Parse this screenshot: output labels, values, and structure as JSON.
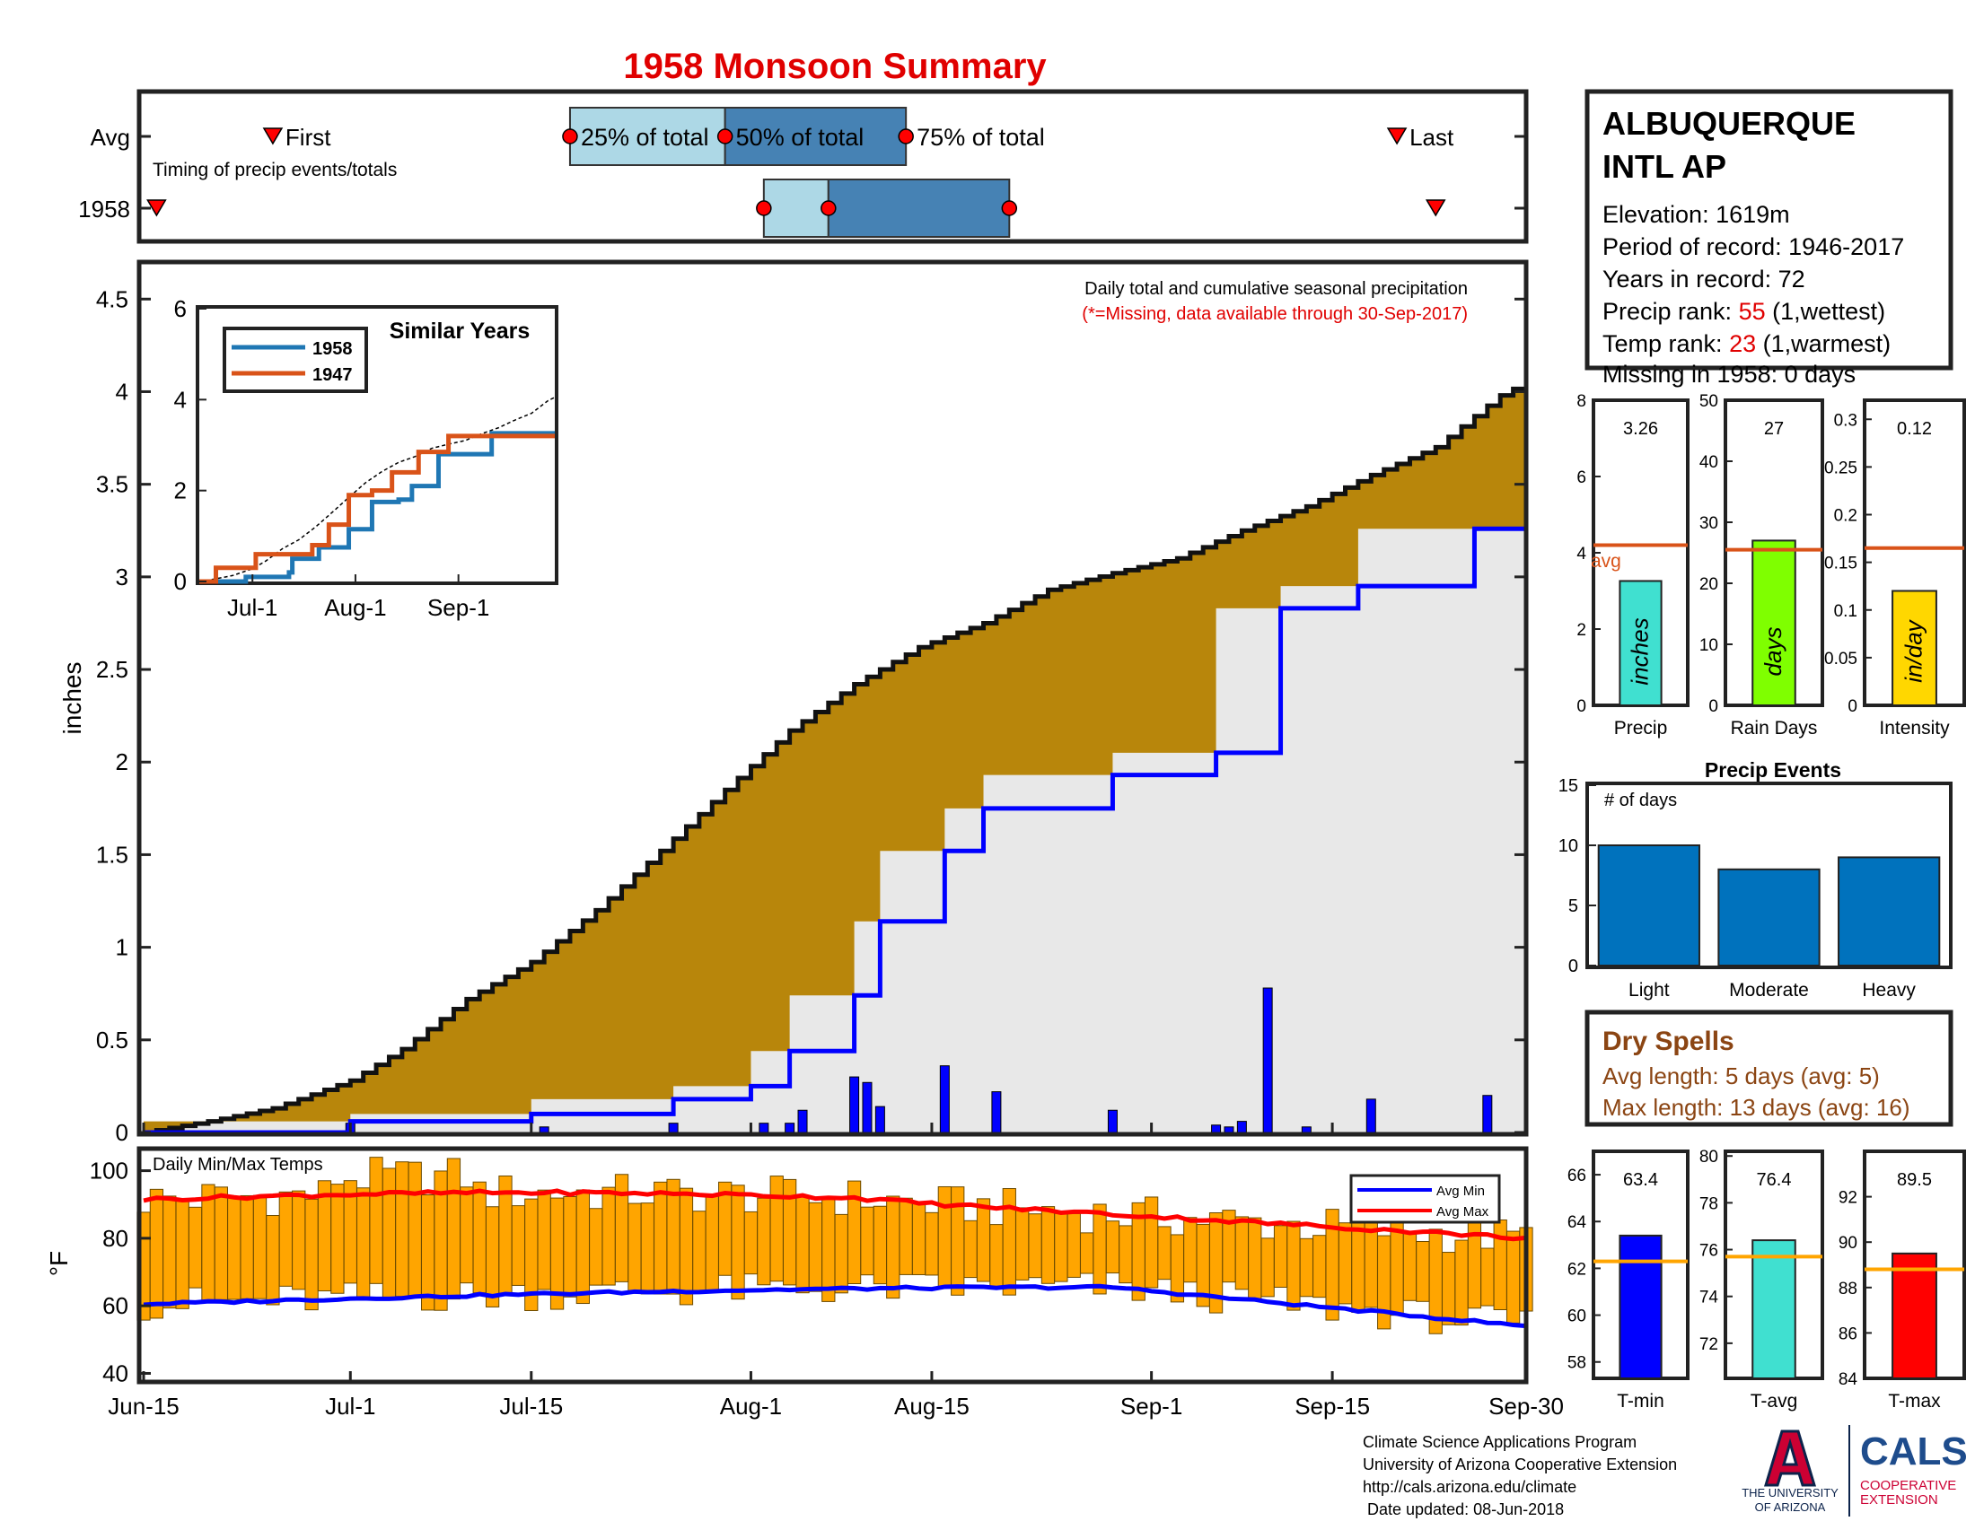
{
  "title": "1958 Monsoon Summary",
  "station": {
    "name_line1": "ALBUQUERQUE",
    "name_line2": "INTL AP",
    "elevation": "Elevation: 1619m",
    "period": "Period of record: 1946-2017",
    "years": "Years in record: 72",
    "precip_rank_label": "Precip rank: ",
    "precip_rank_value": "55",
    "precip_rank_note": " (1,wettest)",
    "temp_rank_label": "Temp rank: ",
    "temp_rank_value": "23",
    "temp_rank_note": " (1,warmest)",
    "missing": "Missing in 1958: 0 days"
  },
  "timing": {
    "caption": "Timing of precip events/totals",
    "row_avg": "Avg",
    "row_year": "1958",
    "first_label": "First",
    "last_label": "Last",
    "p25_label": "25% of total",
    "p50_label": "50% of total",
    "p75_label": "75% of total",
    "avg": {
      "first": 10,
      "p25": 33,
      "p50": 45,
      "p75": 59,
      "last": 97
    },
    "year": {
      "first": 1,
      "p25": 48,
      "p50": 53,
      "p75": 67,
      "last": 100
    }
  },
  "precip": {
    "caption": "Daily total and cumulative seasonal precipitation",
    "missing_note": "(*=Missing, data available through 30-Sep-2017)",
    "ylabel": "inches",
    "ylim": [
      0,
      4.7
    ],
    "yticks": [
      "0",
      "0.5",
      "1",
      "1.5",
      "2",
      "2.5",
      "3",
      "3.5",
      "4",
      "4.5"
    ],
    "xticks": [
      "Jun-15",
      "Jul-1",
      "Jul-15",
      "Aug-1",
      "Aug-15",
      "Sep-1",
      "Sep-15",
      "Sep-30"
    ],
    "xtick_days": [
      0,
      16,
      30,
      47,
      61,
      78,
      92,
      107
    ],
    "avg_cumulative": [
      [
        0,
        0
      ],
      [
        5,
        0.06
      ],
      [
        10,
        0.13
      ],
      [
        16,
        0.28
      ],
      [
        20,
        0.45
      ],
      [
        25,
        0.72
      ],
      [
        30,
        0.92
      ],
      [
        35,
        1.2
      ],
      [
        40,
        1.52
      ],
      [
        45,
        1.85
      ],
      [
        50,
        2.17
      ],
      [
        55,
        2.42
      ],
      [
        60,
        2.62
      ],
      [
        65,
        2.75
      ],
      [
        70,
        2.93
      ],
      [
        75,
        3.02
      ],
      [
        80,
        3.1
      ],
      [
        85,
        3.25
      ],
      [
        90,
        3.38
      ],
      [
        95,
        3.55
      ],
      [
        100,
        3.7
      ],
      [
        105,
        3.98
      ],
      [
        107,
        4.05
      ]
    ],
    "cumulative_1958": [
      [
        0,
        0
      ],
      [
        16,
        0.06
      ],
      [
        30,
        0.1
      ],
      [
        41,
        0.18
      ],
      [
        47,
        0.25
      ],
      [
        50,
        0.44
      ],
      [
        55,
        0.74
      ],
      [
        57,
        1.14
      ],
      [
        62,
        1.52
      ],
      [
        65,
        1.75
      ],
      [
        75,
        1.93
      ],
      [
        83,
        2.05
      ],
      [
        88,
        2.83
      ],
      [
        94,
        2.95
      ],
      [
        103,
        3.26
      ],
      [
        107,
        3.26
      ]
    ],
    "daily_bars": [
      [
        16,
        0.05
      ],
      [
        31,
        0.03
      ],
      [
        41,
        0.05
      ],
      [
        48,
        0.05
      ],
      [
        50,
        0.05
      ],
      [
        51,
        0.12
      ],
      [
        55,
        0.3
      ],
      [
        56,
        0.27
      ],
      [
        57,
        0.14
      ],
      [
        62,
        0.36
      ],
      [
        66,
        0.22
      ],
      [
        75,
        0.12
      ],
      [
        83,
        0.04
      ],
      [
        84,
        0.03
      ],
      [
        85,
        0.06
      ],
      [
        87,
        0.78
      ],
      [
        90,
        0.03
      ],
      [
        95,
        0.18
      ],
      [
        104,
        0.2
      ]
    ]
  },
  "inset": {
    "title": "Similar Years",
    "series": [
      {
        "name": "1958",
        "color": "#1f77b4",
        "points": [
          [
            0,
            0
          ],
          [
            10,
            0
          ],
          [
            14,
            0.1
          ],
          [
            16,
            0.1
          ],
          [
            27,
            0.2
          ],
          [
            28,
            0.5
          ],
          [
            36,
            0.75
          ],
          [
            45,
            1.15
          ],
          [
            52,
            1.75
          ],
          [
            60,
            1.8
          ],
          [
            64,
            2.1
          ],
          [
            72,
            2.8
          ],
          [
            88,
            3.26
          ],
          [
            107,
            3.26
          ]
        ]
      },
      {
        "name": "1947",
        "color": "#d95319",
        "points": [
          [
            0,
            0
          ],
          [
            5,
            0.3
          ],
          [
            15,
            0.3
          ],
          [
            17,
            0.6
          ],
          [
            27,
            0.6
          ],
          [
            34,
            0.8
          ],
          [
            39,
            1.25
          ],
          [
            45,
            1.9
          ],
          [
            52,
            2.0
          ],
          [
            58,
            2.4
          ],
          [
            66,
            2.85
          ],
          [
            75,
            3.2
          ],
          [
            107,
            3.2
          ]
        ]
      }
    ],
    "ylim": [
      0,
      6
    ],
    "yticks": [
      "0",
      "2",
      "4",
      "6"
    ],
    "xticks": [
      "Jul-1",
      "Aug-1",
      "Sep-1"
    ]
  },
  "bars": {
    "precip": {
      "label": "Precip",
      "unit": "inches",
      "value": 3.26,
      "value_text": "3.26",
      "avg": 4.2,
      "ylim": [
        0,
        8
      ],
      "yticks": [
        "0",
        "2",
        "4",
        "6",
        "8"
      ],
      "color": "#40e0d0",
      "avg_label": "avg"
    },
    "raindays": {
      "label": "Rain Days",
      "unit": "days",
      "value": 27,
      "value_text": "27",
      "avg": 25.5,
      "ylim": [
        0,
        50
      ],
      "yticks": [
        "0",
        "10",
        "20",
        "30",
        "40",
        "50"
      ],
      "color": "#7fff00"
    },
    "intensity": {
      "label": "Intensity",
      "unit": "in/day",
      "value": 0.12,
      "value_text": "0.12",
      "avg": 0.165,
      "ylim": [
        0,
        0.32
      ],
      "yticks": [
        "0",
        "0.05",
        "0.1",
        "0.15",
        "0.2",
        "0.25",
        "0.3"
      ],
      "color": "#ffd700"
    }
  },
  "events": {
    "title": "Precip Events",
    "ylabel": "# of days",
    "categories": [
      "Light",
      "Moderate",
      "Heavy"
    ],
    "values": [
      10,
      8,
      9
    ],
    "ylim": [
      0,
      15
    ],
    "yticks": [
      "0",
      "5",
      "10",
      "15"
    ],
    "color": "#0072bd"
  },
  "dry": {
    "title": "Dry Spells",
    "avg_length": "Avg length: 5 days (avg: 5)",
    "max_length": "Max length: 13 days (avg: 16)"
  },
  "temps": {
    "caption": "Daily Min/Max Temps",
    "ylabel": "°F",
    "ylim": [
      38,
      106
    ],
    "yticks": [
      "40",
      "60",
      "80",
      "100"
    ],
    "legend_min": "Avg Min",
    "legend_max": "Avg Max"
  },
  "tbars": {
    "tmin": {
      "label": "T-min",
      "value": 63.4,
      "value_text": "63.4",
      "avg": 62.3,
      "ylim": [
        57.3,
        67
      ],
      "yticks": [
        "58",
        "60",
        "62",
        "64",
        "66"
      ],
      "color": "#0000ff"
    },
    "tavg": {
      "label": "T-avg",
      "value": 76.4,
      "value_text": "76.4",
      "avg": 75.7,
      "ylim": [
        70.5,
        80.2
      ],
      "yticks": [
        "72",
        "74",
        "76",
        "78",
        "80"
      ],
      "color": "#40e0d0"
    },
    "tmax": {
      "label": "T-max",
      "value": 89.5,
      "value_text": "89.5",
      "avg": 88.8,
      "ylim": [
        84,
        94
      ],
      "yticks": [
        "84",
        "86",
        "88",
        "90",
        "92"
      ],
      "color": "#ff0000"
    }
  },
  "footer": {
    "line1": "Climate Science Applications Program",
    "line2": "University of Arizona Cooperative Extension",
    "line3": "http://cals.arizona.edu/climate",
    "line4": " Date updated: 08-Jun-2018",
    "logo_ua1": "THE UNIVERSITY",
    "logo_ua2": "OF ARIZONA",
    "logo_cals": "CALS",
    "logo_coop1": "COOPERATIVE",
    "logo_coop2": "EXTENSION"
  },
  "colors": {
    "title": "#e00000",
    "brown": "#b8860b",
    "grey": "#e8e8e8",
    "blue": "#0000ff",
    "orange": "#ffa500",
    "avgline": "#d95319"
  }
}
